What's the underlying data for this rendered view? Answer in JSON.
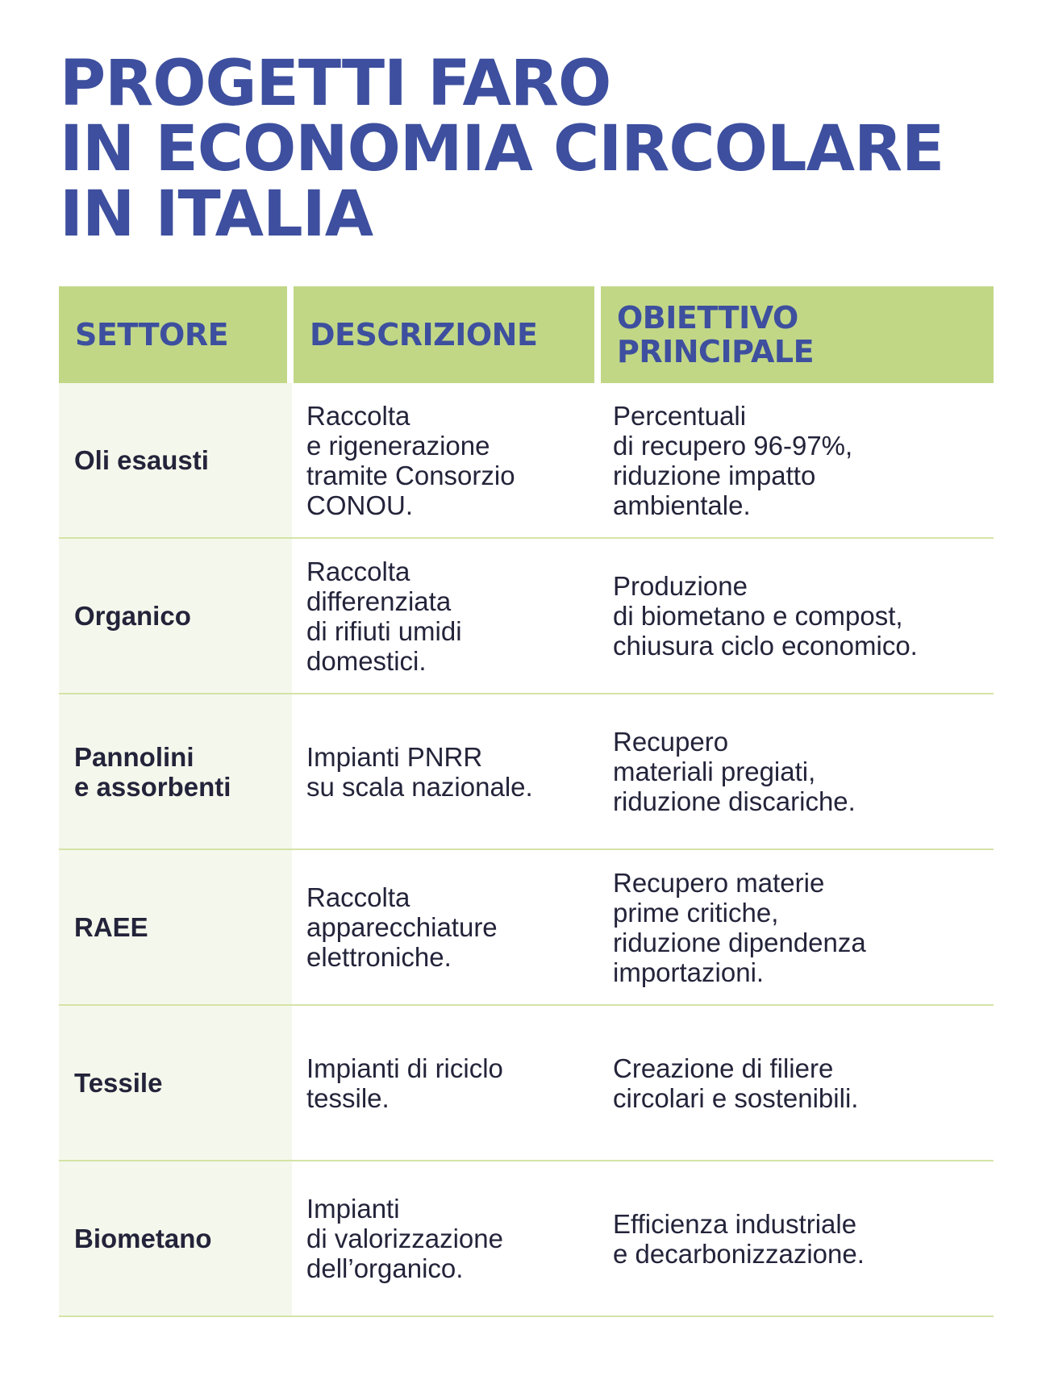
{
  "title": {
    "lines": [
      "PROGETTI FARO",
      "IN ECONOMIA CIRCOLARE",
      "IN ITALIA"
    ]
  },
  "table": {
    "headers": [
      "SETTORE",
      "DESCRIZIONE",
      "OBIETTIVO\nPRINCIPALE"
    ],
    "rows": [
      {
        "settore": "Oli esausti",
        "descrizione": "Raccolta\ne rigenerazione\ntramite Consorzio\nCONOU.",
        "obiettivo": "Percentuali\ndi recupero 96-97%,\nriduzione impatto\nambientale."
      },
      {
        "settore": "Organico",
        "descrizione": "Raccolta\ndifferenziata\ndi rifiuti umidi\ndomestici.",
        "obiettivo": "Produzione\ndi biometano e compost,\nchiusura ciclo economico."
      },
      {
        "settore": "Pannolini\ne assorbenti",
        "descrizione": "Impianti PNRR\nsu scala nazionale.",
        "obiettivo": "Recupero\nmateriali pregiati,\nriduzione discariche."
      },
      {
        "settore": "RAEE",
        "descrizione": "Raccolta\napparecchiature\nelettroniche.",
        "obiettivo": "Recupero materie\nprime critiche,\nriduzione dipendenza\nimportazioni."
      },
      {
        "settore": "Tessile",
        "descrizione": "Impianti di riciclo\ntessile.",
        "obiettivo": "Creazione di filiere\ncircolari e sostenibili."
      },
      {
        "settore": "Biometano",
        "descrizione": "Impianti\ndi valorizzazione\ndell’organico.",
        "obiettivo": "Efficienza industriale\ne decarbonizzazione."
      }
    ]
  },
  "colors": {
    "title": "#3d4f9e",
    "header_bg": "#c1d786",
    "first_col_bg": "#f4f8ec",
    "divider": "#d4e3a6",
    "text": "#23243a"
  }
}
